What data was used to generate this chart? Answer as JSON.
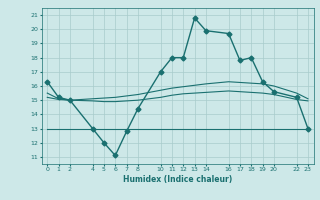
{
  "xlabel": "Humidex (Indice chaleur)",
  "ylabel": "",
  "xlim": [
    -0.5,
    23.5
  ],
  "ylim": [
    10.5,
    21.5
  ],
  "xticks": [
    0,
    1,
    2,
    4,
    5,
    6,
    7,
    8,
    10,
    11,
    12,
    13,
    14,
    16,
    17,
    18,
    19,
    20,
    22,
    23
  ],
  "yticks": [
    11,
    12,
    13,
    14,
    15,
    16,
    17,
    18,
    19,
    20,
    21
  ],
  "background_color": "#cde8e8",
  "grid_color": "#a8cccc",
  "line_color": "#1a7070",
  "lines": [
    {
      "x": [
        0,
        1,
        2,
        4,
        5,
        6,
        7,
        8,
        10,
        11,
        12,
        13,
        14,
        16,
        17,
        18,
        19,
        20,
        22,
        23
      ],
      "y": [
        16.3,
        15.2,
        15.0,
        13.0,
        12.0,
        11.1,
        12.8,
        14.4,
        17.0,
        18.0,
        18.0,
        20.8,
        19.9,
        19.7,
        17.8,
        18.0,
        16.3,
        15.6,
        15.2,
        13.0
      ],
      "marker": "D",
      "markersize": 2.5,
      "linewidth": 1.0
    },
    {
      "x": [
        0,
        1,
        2,
        4,
        5,
        6,
        7,
        8,
        10,
        11,
        12,
        13,
        14,
        16,
        17,
        18,
        19,
        20,
        22,
        23
      ],
      "y": [
        15.5,
        15.1,
        15.0,
        15.1,
        15.15,
        15.2,
        15.3,
        15.4,
        15.7,
        15.85,
        15.95,
        16.05,
        16.15,
        16.3,
        16.25,
        16.2,
        16.15,
        16.0,
        15.5,
        15.1
      ],
      "marker": null,
      "markersize": 0,
      "linewidth": 0.8
    },
    {
      "x": [
        0,
        1,
        2,
        4,
        5,
        6,
        7,
        8,
        10,
        11,
        12,
        13,
        14,
        16,
        17,
        18,
        19,
        20,
        22,
        23
      ],
      "y": [
        15.2,
        15.05,
        15.0,
        14.95,
        14.9,
        14.9,
        14.95,
        15.0,
        15.2,
        15.35,
        15.45,
        15.5,
        15.55,
        15.65,
        15.6,
        15.55,
        15.5,
        15.4,
        15.05,
        14.95
      ],
      "marker": null,
      "markersize": 0,
      "linewidth": 0.8
    },
    {
      "x": [
        0,
        1,
        2,
        4,
        5,
        6,
        7,
        8,
        10,
        11,
        12,
        13,
        14,
        16,
        17,
        18,
        19,
        20,
        22,
        23
      ],
      "y": [
        13.0,
        13.0,
        13.0,
        13.0,
        13.0,
        13.0,
        13.0,
        13.0,
        13.0,
        13.0,
        13.0,
        13.0,
        13.0,
        13.0,
        13.0,
        13.0,
        13.0,
        13.0,
        13.0,
        13.0
      ],
      "marker": null,
      "markersize": 0,
      "linewidth": 0.8
    }
  ]
}
